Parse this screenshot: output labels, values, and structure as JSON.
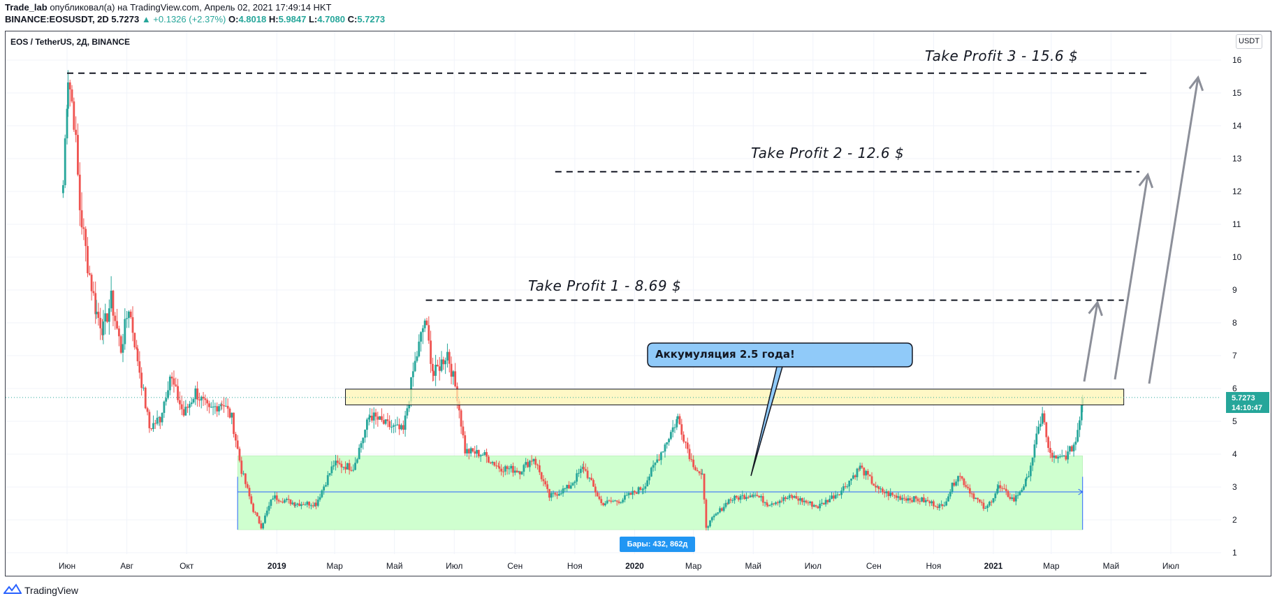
{
  "header": {
    "user": "Trade_lab",
    "published": "опубликовал(а) на TradingView.com, Апрель 02, 2021 17:49:14 HKT",
    "symbol": "BINANCE:EOSUSDT, 2D",
    "price": "5.7273",
    "change": "▲ +0.1326 (+2.37%)",
    "o_label": "O:",
    "o": "4.8018",
    "h_label": "H:",
    "h": "5.9847",
    "l_label": "L:",
    "l": "4.7080",
    "c_label": "C:",
    "c": "5.7273"
  },
  "chart_title": "EOS / TetherUS, 2Д, BINANCE",
  "currency_button": "USDT",
  "last_price_label": {
    "price": "5.7273",
    "countdown": "14:10:47"
  },
  "bars_badge": "Бары: 432, 862д",
  "callout": "Аккумуляция 2.5 года!",
  "take_profits": [
    {
      "label": "Take Profit 1 - 8.69 $",
      "price": 8.69
    },
    {
      "label": "Take Profit 2 - 12.6 $",
      "price": 12.6
    },
    {
      "label": "Take Profit 3 - 15.6 $",
      "price": 15.6
    }
  ],
  "footer": {
    "brand": "TradingView"
  },
  "colors": {
    "up": "#26a69a",
    "down": "#ef5350",
    "zone_green": "#ccffcc",
    "zone_yellow": "#fff5b3",
    "arrow": "#8c8f99"
  },
  "chart_data": {
    "type": "candlestick",
    "title": "EOS / TetherUS, 2Д, BINANCE",
    "ylim": [
      0.8,
      16.4
    ],
    "y_ticks": [
      1,
      2,
      3,
      4,
      5,
      6,
      7,
      8,
      9,
      10,
      11,
      12,
      13,
      14,
      15,
      16
    ],
    "x_ticks": [
      "Июн",
      "Авг",
      "Окт",
      "2019",
      "Мар",
      "Май",
      "Июл",
      "Сен",
      "Ноя",
      "2020",
      "Мар",
      "Май",
      "Июл",
      "Сен",
      "Ноя",
      "2021",
      "Мар",
      "Май",
      "Июл"
    ],
    "x_tick_dates": [
      "2018-06-01",
      "2018-08-01",
      "2018-10-01",
      "2019-01-01",
      "2019-03-01",
      "2019-05-01",
      "2019-07-01",
      "2019-09-01",
      "2019-11-01",
      "2020-01-01",
      "2020-03-01",
      "2020-05-01",
      "2020-07-01",
      "2020-09-01",
      "2020-11-01",
      "2021-01-01",
      "2021-03-01",
      "2021-05-01",
      "2021-07-01"
    ],
    "price_anchors": [
      {
        "date": "2018-05-28",
        "price": 12.2
      },
      {
        "date": "2018-06-02",
        "price": 15.6
      },
      {
        "date": "2018-06-08",
        "price": 14.3
      },
      {
        "date": "2018-06-14",
        "price": 11.5
      },
      {
        "date": "2018-06-22",
        "price": 9.8
      },
      {
        "date": "2018-07-01",
        "price": 8.3
      },
      {
        "date": "2018-07-08",
        "price": 7.8
      },
      {
        "date": "2018-07-16",
        "price": 8.7
      },
      {
        "date": "2018-07-26",
        "price": 7.2
      },
      {
        "date": "2018-08-03",
        "price": 8.5
      },
      {
        "date": "2018-08-12",
        "price": 6.9
      },
      {
        "date": "2018-08-24",
        "price": 4.8
      },
      {
        "date": "2018-09-04",
        "price": 5.1
      },
      {
        "date": "2018-09-14",
        "price": 6.4
      },
      {
        "date": "2018-09-28",
        "price": 5.2
      },
      {
        "date": "2018-10-10",
        "price": 5.9
      },
      {
        "date": "2018-10-24",
        "price": 5.3
      },
      {
        "date": "2018-11-06",
        "price": 5.6
      },
      {
        "date": "2018-11-16",
        "price": 5.1
      },
      {
        "date": "2018-11-26",
        "price": 3.5
      },
      {
        "date": "2018-12-08",
        "price": 2.3
      },
      {
        "date": "2018-12-16",
        "price": 1.8
      },
      {
        "date": "2018-12-28",
        "price": 2.7
      },
      {
        "date": "2019-01-20",
        "price": 2.5
      },
      {
        "date": "2019-02-10",
        "price": 2.5
      },
      {
        "date": "2019-02-28",
        "price": 3.7
      },
      {
        "date": "2019-03-20",
        "price": 3.6
      },
      {
        "date": "2019-04-06",
        "price": 5.2
      },
      {
        "date": "2019-04-22",
        "price": 4.9
      },
      {
        "date": "2019-05-10",
        "price": 4.7
      },
      {
        "date": "2019-05-20",
        "price": 6.5
      },
      {
        "date": "2019-06-01",
        "price": 8.1
      },
      {
        "date": "2019-06-10",
        "price": 6.4
      },
      {
        "date": "2019-06-24",
        "price": 7.1
      },
      {
        "date": "2019-07-04",
        "price": 5.8
      },
      {
        "date": "2019-07-12",
        "price": 4.1
      },
      {
        "date": "2019-07-30",
        "price": 4.0
      },
      {
        "date": "2019-08-16",
        "price": 3.6
      },
      {
        "date": "2019-09-06",
        "price": 3.5
      },
      {
        "date": "2019-09-20",
        "price": 3.9
      },
      {
        "date": "2019-10-06",
        "price": 2.7
      },
      {
        "date": "2019-10-26",
        "price": 3.0
      },
      {
        "date": "2019-11-10",
        "price": 3.6
      },
      {
        "date": "2019-11-28",
        "price": 2.5
      },
      {
        "date": "2019-12-18",
        "price": 2.6
      },
      {
        "date": "2020-01-10",
        "price": 3.0
      },
      {
        "date": "2020-02-01",
        "price": 4.3
      },
      {
        "date": "2020-02-14",
        "price": 5.1
      },
      {
        "date": "2020-02-28",
        "price": 3.8
      },
      {
        "date": "2020-03-10",
        "price": 3.3
      },
      {
        "date": "2020-03-14",
        "price": 1.8
      },
      {
        "date": "2020-04-06",
        "price": 2.6
      },
      {
        "date": "2020-05-01",
        "price": 2.8
      },
      {
        "date": "2020-05-16",
        "price": 2.5
      },
      {
        "date": "2020-06-10",
        "price": 2.7
      },
      {
        "date": "2020-07-06",
        "price": 2.4
      },
      {
        "date": "2020-07-30",
        "price": 2.9
      },
      {
        "date": "2020-08-18",
        "price": 3.6
      },
      {
        "date": "2020-09-06",
        "price": 2.9
      },
      {
        "date": "2020-09-24",
        "price": 2.7
      },
      {
        "date": "2020-10-20",
        "price": 2.6
      },
      {
        "date": "2020-11-10",
        "price": 2.4
      },
      {
        "date": "2020-11-26",
        "price": 3.4
      },
      {
        "date": "2020-12-10",
        "price": 2.8
      },
      {
        "date": "2020-12-24",
        "price": 2.3
      },
      {
        "date": "2021-01-06",
        "price": 3.0
      },
      {
        "date": "2021-01-22",
        "price": 2.6
      },
      {
        "date": "2021-02-04",
        "price": 3.2
      },
      {
        "date": "2021-02-12",
        "price": 4.2
      },
      {
        "date": "2021-02-20",
        "price": 5.3
      },
      {
        "date": "2021-02-26",
        "price": 4.1
      },
      {
        "date": "2021-03-06",
        "price": 3.8
      },
      {
        "date": "2021-03-18",
        "price": 4.0
      },
      {
        "date": "2021-03-26",
        "price": 4.4
      },
      {
        "date": "2021-04-02",
        "price": 5.7273
      }
    ],
    "zones": [
      {
        "name": "accumulation",
        "from": "2018-11-22",
        "to": "2021-04-02",
        "low": 1.7,
        "high": 3.95
      },
      {
        "name": "resistance",
        "from": "2019-03-12",
        "to": "2021-05-14",
        "low": 5.5,
        "high": 5.98
      }
    ],
    "mid_line": {
      "price": 2.85,
      "from": "2018-11-22",
      "to": "2021-04-02"
    },
    "take_profit_lines": [
      {
        "price": 8.69,
        "from": "2019-06-02",
        "to": "2021-05-14"
      },
      {
        "price": 12.6,
        "from": "2019-10-12",
        "to": "2021-05-30"
      },
      {
        "price": 15.6,
        "from": "2018-06-01",
        "to": "2021-06-08"
      }
    ],
    "last_price": 5.7273
  }
}
